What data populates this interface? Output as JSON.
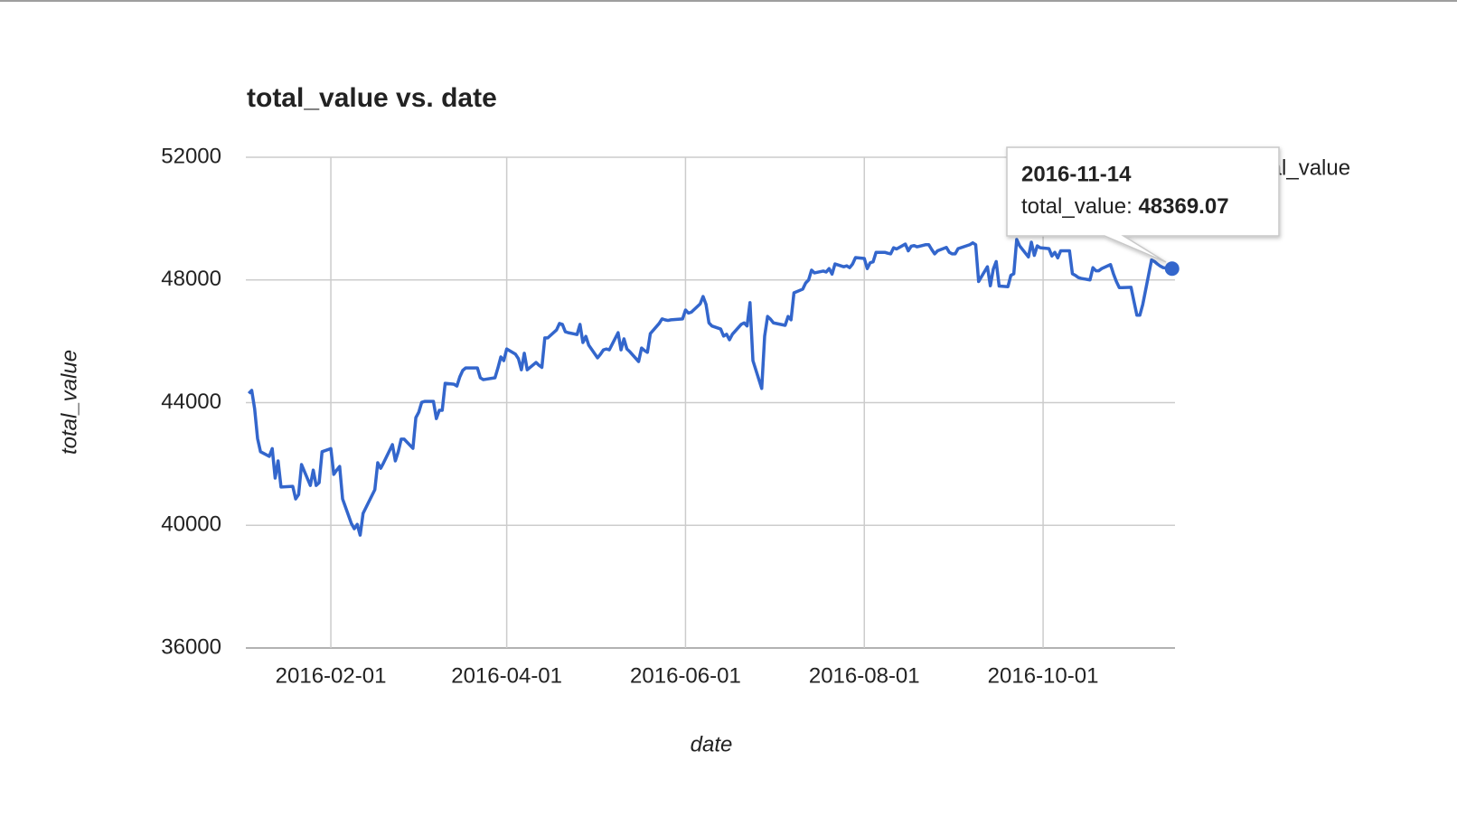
{
  "chart_data": {
    "type": "line",
    "title": "total_value vs. date",
    "x_label": "date",
    "y_label": "total_value",
    "x": [
      "2016-01-04",
      "2016-01-05",
      "2016-01-06",
      "2016-01-07",
      "2016-01-08",
      "2016-01-11",
      "2016-01-12",
      "2016-01-13",
      "2016-01-14",
      "2016-01-15",
      "2016-01-19",
      "2016-01-20",
      "2016-01-21",
      "2016-01-22",
      "2016-01-25",
      "2016-01-26",
      "2016-01-27",
      "2016-01-28",
      "2016-01-29",
      "2016-02-01",
      "2016-02-02",
      "2016-02-03",
      "2016-02-04",
      "2016-02-05",
      "2016-02-08",
      "2016-02-09",
      "2016-02-10",
      "2016-02-11",
      "2016-02-12",
      "2016-02-16",
      "2016-02-17",
      "2016-02-18",
      "2016-02-19",
      "2016-02-22",
      "2016-02-23",
      "2016-02-24",
      "2016-02-25",
      "2016-02-26",
      "2016-02-29",
      "2016-03-01",
      "2016-03-02",
      "2016-03-03",
      "2016-03-04",
      "2016-03-07",
      "2016-03-08",
      "2016-03-09",
      "2016-03-10",
      "2016-03-11",
      "2016-03-14",
      "2016-03-15",
      "2016-03-16",
      "2016-03-17",
      "2016-03-18",
      "2016-03-21",
      "2016-03-22",
      "2016-03-23",
      "2016-03-24",
      "2016-03-28",
      "2016-03-29",
      "2016-03-30",
      "2016-03-31",
      "2016-04-01",
      "2016-04-04",
      "2016-04-05",
      "2016-04-06",
      "2016-04-07",
      "2016-04-08",
      "2016-04-11",
      "2016-04-12",
      "2016-04-13",
      "2016-04-14",
      "2016-04-15",
      "2016-04-18",
      "2016-04-19",
      "2016-04-20",
      "2016-04-21",
      "2016-04-22",
      "2016-04-25",
      "2016-04-26",
      "2016-04-27",
      "2016-04-28",
      "2016-04-29",
      "2016-05-02",
      "2016-05-03",
      "2016-05-04",
      "2016-05-05",
      "2016-05-06",
      "2016-05-09",
      "2016-05-10",
      "2016-05-11",
      "2016-05-12",
      "2016-05-13",
      "2016-05-16",
      "2016-05-17",
      "2016-05-18",
      "2016-05-19",
      "2016-05-20",
      "2016-05-23",
      "2016-05-24",
      "2016-05-25",
      "2016-05-26",
      "2016-05-27",
      "2016-05-31",
      "2016-06-01",
      "2016-06-02",
      "2016-06-03",
      "2016-06-06",
      "2016-06-07",
      "2016-06-08",
      "2016-06-09",
      "2016-06-10",
      "2016-06-13",
      "2016-06-14",
      "2016-06-15",
      "2016-06-16",
      "2016-06-17",
      "2016-06-20",
      "2016-06-21",
      "2016-06-22",
      "2016-06-23",
      "2016-06-24",
      "2016-06-27",
      "2016-06-28",
      "2016-06-29",
      "2016-06-30",
      "2016-07-01",
      "2016-07-05",
      "2016-07-06",
      "2016-07-07",
      "2016-07-08",
      "2016-07-11",
      "2016-07-12",
      "2016-07-13",
      "2016-07-14",
      "2016-07-15",
      "2016-07-18",
      "2016-07-19",
      "2016-07-20",
      "2016-07-21",
      "2016-07-22",
      "2016-07-25",
      "2016-07-26",
      "2016-07-27",
      "2016-07-28",
      "2016-07-29",
      "2016-08-01",
      "2016-08-02",
      "2016-08-03",
      "2016-08-04",
      "2016-08-05",
      "2016-08-08",
      "2016-08-09",
      "2016-08-10",
      "2016-08-11",
      "2016-08-12",
      "2016-08-15",
      "2016-08-16",
      "2016-08-17",
      "2016-08-18",
      "2016-08-19",
      "2016-08-22",
      "2016-08-23",
      "2016-08-24",
      "2016-08-25",
      "2016-08-26",
      "2016-08-29",
      "2016-08-30",
      "2016-08-31",
      "2016-09-01",
      "2016-09-02",
      "2016-09-06",
      "2016-09-07",
      "2016-09-08",
      "2016-09-09",
      "2016-09-12",
      "2016-09-13",
      "2016-09-14",
      "2016-09-15",
      "2016-09-16",
      "2016-09-19",
      "2016-09-20",
      "2016-09-21",
      "2016-09-22",
      "2016-09-23",
      "2016-09-26",
      "2016-09-27",
      "2016-09-28",
      "2016-09-29",
      "2016-09-30",
      "2016-10-03",
      "2016-10-04",
      "2016-10-05",
      "2016-10-06",
      "2016-10-07",
      "2016-10-10",
      "2016-10-11",
      "2016-10-12",
      "2016-10-13",
      "2016-10-14",
      "2016-10-17",
      "2016-10-18",
      "2016-10-19",
      "2016-10-20",
      "2016-10-21",
      "2016-10-24",
      "2016-10-25",
      "2016-10-26",
      "2016-10-27",
      "2016-10-28",
      "2016-10-31",
      "2016-11-01",
      "2016-11-02",
      "2016-11-03",
      "2016-11-04",
      "2016-11-07",
      "2016-11-08",
      "2016-11-09",
      "2016-11-10",
      "2016-11-11",
      "2016-11-14"
    ],
    "series": [
      {
        "name": "total_value",
        "color": "#3366cc",
        "values": [
          44300,
          44400,
          43800,
          42830,
          42400,
          42250,
          42500,
          41540,
          42100,
          41250,
          41270,
          40860,
          41000,
          41980,
          41300,
          41800,
          41300,
          41390,
          42400,
          42500,
          41660,
          41800,
          41920,
          40860,
          40060,
          39890,
          40030,
          39680,
          40390,
          41160,
          42040,
          41860,
          42040,
          42630,
          42100,
          42400,
          42810,
          42810,
          42510,
          43510,
          43690,
          44010,
          44040,
          44040,
          43480,
          43750,
          43750,
          44630,
          44600,
          44540,
          44840,
          45050,
          45130,
          45130,
          45130,
          44810,
          44750,
          44810,
          45130,
          45490,
          45370,
          45750,
          45580,
          45430,
          45070,
          45610,
          45070,
          45310,
          45220,
          45150,
          46110,
          46110,
          46370,
          46580,
          46550,
          46310,
          46280,
          46220,
          46550,
          45960,
          46160,
          45870,
          45460,
          45580,
          45720,
          45750,
          45720,
          46280,
          45720,
          46080,
          45750,
          45660,
          45340,
          45780,
          45700,
          45640,
          46250,
          46580,
          46730,
          46700,
          46680,
          46700,
          46730,
          47020,
          46920,
          46950,
          47220,
          47460,
          47200,
          46600,
          46500,
          46400,
          46170,
          46230,
          46050,
          46230,
          46550,
          46600,
          46500,
          47260,
          45370,
          44460,
          46170,
          46810,
          46720,
          46600,
          46520,
          46810,
          46700,
          47580,
          47700,
          47900,
          48000,
          48320,
          48230,
          48290,
          48260,
          48370,
          48190,
          48520,
          48430,
          48460,
          48400,
          48520,
          48730,
          48700,
          48370,
          48560,
          48590,
          48900,
          48900,
          48870,
          48850,
          49050,
          49010,
          49170,
          48950,
          49100,
          49120,
          49080,
          49150,
          49150,
          48990,
          48850,
          48950,
          49060,
          48900,
          48850,
          48850,
          49020,
          49150,
          49210,
          49150,
          47950,
          48430,
          47810,
          48350,
          48600,
          47800,
          47780,
          48150,
          48200,
          49320,
          49110,
          48750,
          49230,
          48800,
          49110,
          49050,
          49020,
          48780,
          48900,
          48720,
          48950,
          48950,
          48200,
          48150,
          48080,
          48050,
          48000,
          48400,
          48300,
          48300,
          48370,
          48500,
          48200,
          47950,
          47750,
          47750,
          47760,
          47300,
          46850,
          46850,
          47200,
          48650,
          48600,
          48520,
          48450,
          48400,
          48369.07
        ]
      }
    ],
    "xlim": [
      "2016-01-03",
      "2016-11-15"
    ],
    "xticks": [
      "2016-02-01",
      "2016-04-01",
      "2016-06-01",
      "2016-08-01",
      "2016-10-01"
    ],
    "ylim": [
      36000,
      52000
    ],
    "yticks": [
      36000,
      40000,
      44000,
      48000,
      52000
    ],
    "grid": true,
    "legend": "right"
  }
}
